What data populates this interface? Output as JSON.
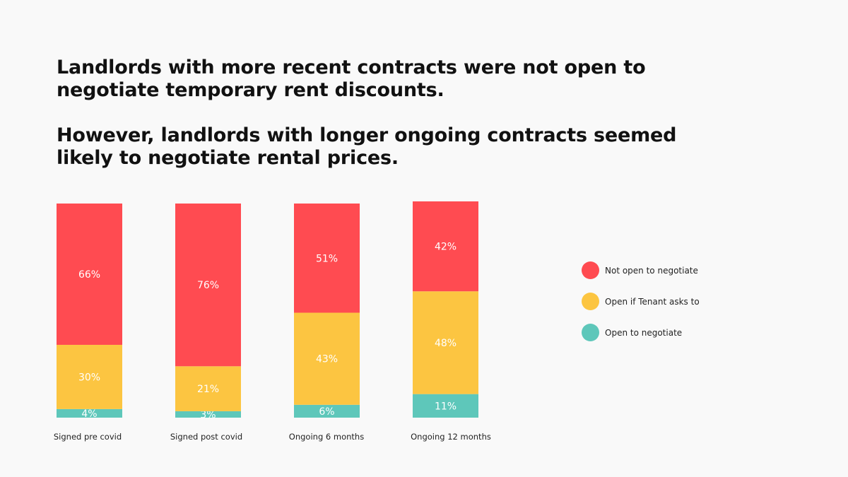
{
  "headline": {
    "line1": "Landlords with more recent contracts were not open to negotiate temporary rent discounts.",
    "line2": "However, landlords with longer ongoing contracts seemed likely to negotiate rental prices."
  },
  "colors": {
    "not_open": "#ff4b51",
    "open_if_asked": "#fcc541",
    "open": "#5ec7ba",
    "background": "#f9f9f9"
  },
  "chart_data": {
    "type": "bar",
    "stacked": true,
    "normalized": true,
    "categories": [
      "Signed pre covid",
      "Signed post covid",
      "Ongoing 6 months",
      "Ongoing 12 months"
    ],
    "series": [
      {
        "name": "Open to negotiate",
        "values": [
          4,
          3,
          6,
          11
        ],
        "labels": [
          "4%",
          "3%",
          "6%",
          "11%"
        ]
      },
      {
        "name": "Open if Tenant asks to",
        "values": [
          30,
          21,
          43,
          48
        ],
        "labels": [
          "30%",
          "21%",
          "43%",
          "48%"
        ]
      },
      {
        "name": "Not open to negotiate",
        "values": [
          66,
          76,
          51,
          42
        ],
        "labels": [
          "66%",
          "76%",
          "51%",
          "42%"
        ]
      }
    ],
    "ylim": [
      0,
      100
    ],
    "grid": false,
    "legend_position": "right"
  },
  "legend": {
    "items": [
      {
        "label": "Not open to negotiate",
        "color": "#ff4b51"
      },
      {
        "label": "Open if Tenant asks to",
        "color": "#fcc541"
      },
      {
        "label": "Open to negotiate",
        "color": "#5ec7ba"
      }
    ]
  }
}
